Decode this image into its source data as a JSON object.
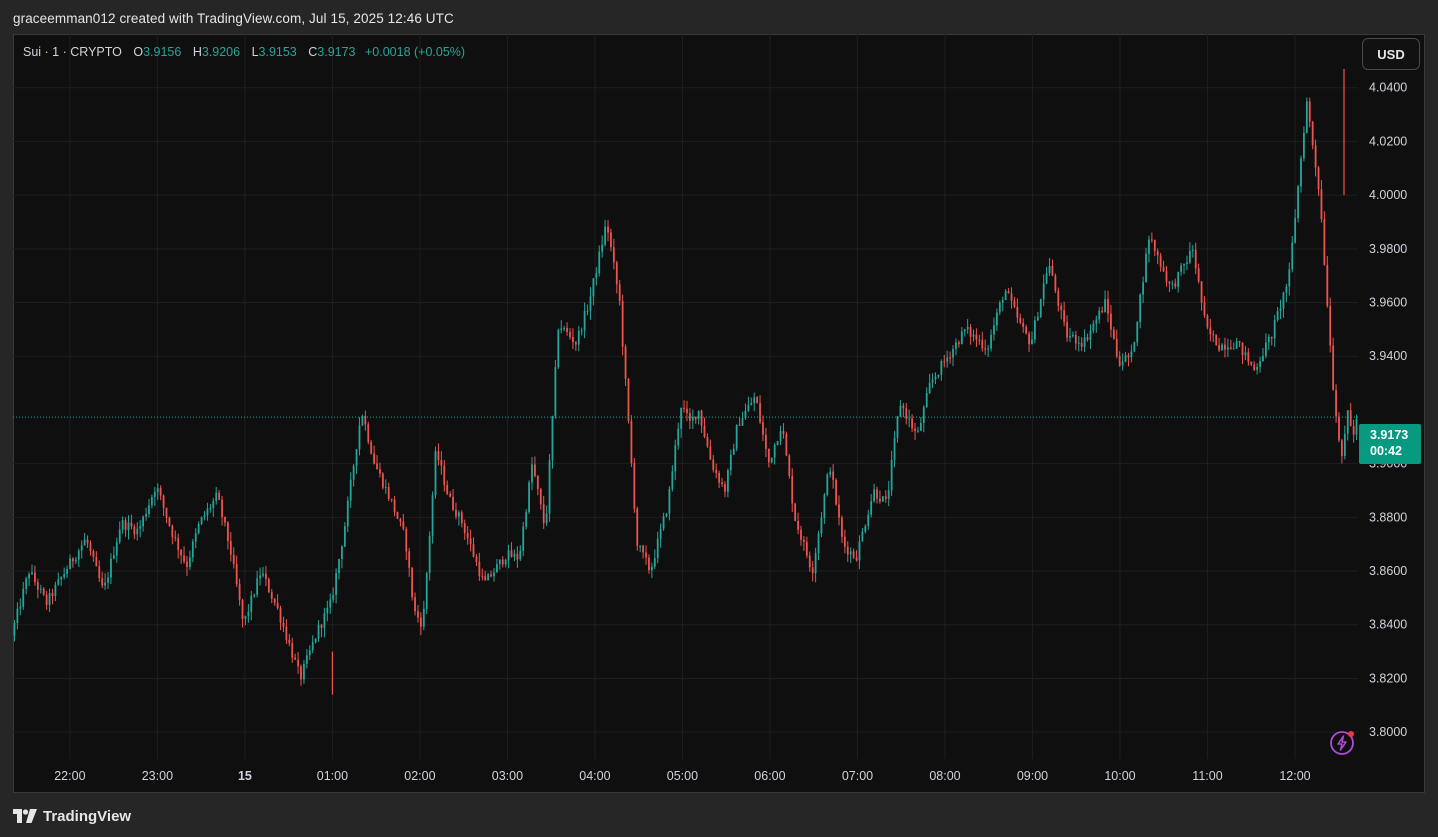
{
  "header": {
    "attribution": "graceemman012 created with TradingView.com, Jul 15, 2025 12:46 UTC"
  },
  "legend": {
    "symbol": "Sui · 1 · CRYPTO",
    "open_label": "O",
    "open_value": "3.9156",
    "high_label": "H",
    "high_value": "3.9206",
    "low_label": "L",
    "low_value": "3.9153",
    "close_label": "C",
    "close_value": "3.9173",
    "change": "+0.0018 (+0.05%)"
  },
  "currency_button": {
    "label": "USD"
  },
  "last_price_badge": {
    "price": "3.9173",
    "countdown": "00:42"
  },
  "footer": {
    "brand": "TradingView"
  },
  "colors": {
    "up": "#26a69a",
    "down": "#ef5350",
    "badge": "#089981",
    "background": "#0f0f0f",
    "grid": "#1f1f1f"
  },
  "icons": {
    "footer_logo": "tradingview-logo-icon",
    "bottom_right": "lightning-bolt-icon"
  },
  "chart_data": {
    "type": "candlestick",
    "symbol": "Sui",
    "interval": "1",
    "last_price": 3.9173,
    "y_range": [
      3.79,
      4.06
    ],
    "y_ticks": [
      "4.0400",
      "4.0200",
      "4.0000",
      "3.9800",
      "3.9600",
      "3.9400",
      "3.9000",
      "3.8800",
      "3.8600",
      "3.8400",
      "3.8200",
      "3.8000"
    ],
    "x_ticks": [
      "22:00",
      "23:00",
      "15",
      "01:00",
      "02:00",
      "03:00",
      "04:00",
      "05:00",
      "06:00",
      "07:00",
      "08:00",
      "09:00",
      "10:00",
      "11:00",
      "12:00"
    ],
    "x_tick_hours": [
      22,
      23,
      24,
      25,
      26,
      27,
      28,
      29,
      30,
      31,
      32,
      33,
      34,
      35,
      36
    ],
    "x_range_hours": [
      21.35,
      36.72
    ],
    "grid": true,
    "path_hours": [
      21.35,
      21.55,
      21.75,
      22.0,
      22.2,
      22.4,
      22.6,
      22.8,
      23.0,
      23.2,
      23.35,
      23.5,
      23.7,
      23.85,
      24.0,
      24.2,
      24.4,
      24.65,
      24.85,
      25.0,
      25.15,
      25.35,
      25.5,
      25.7,
      25.85,
      25.95,
      26.05,
      26.2,
      26.35,
      26.5,
      26.75,
      27.0,
      27.15,
      27.3,
      27.45,
      27.6,
      27.8,
      27.95,
      28.15,
      28.3,
      28.5,
      28.65,
      28.85,
      29.0,
      29.1,
      29.2,
      29.35,
      29.5,
      29.65,
      29.85,
      30.0,
      30.15,
      30.3,
      30.5,
      30.7,
      30.85,
      31.0,
      31.2,
      31.35,
      31.5,
      31.7,
      31.85,
      32.05,
      32.25,
      32.5,
      32.7,
      32.9,
      33.0,
      33.2,
      33.4,
      33.6,
      33.85,
      34.0,
      34.15,
      34.35,
      34.6,
      34.85,
      35.0,
      35.15,
      35.35,
      35.55,
      35.75,
      35.95,
      36.15,
      36.3,
      36.45,
      36.55,
      36.62,
      36.7,
      36.72
    ],
    "path_prices": [
      3.836,
      3.86,
      3.848,
      3.862,
      3.872,
      3.852,
      3.878,
      3.875,
      3.892,
      3.873,
      3.862,
      3.878,
      3.888,
      3.868,
      3.84,
      3.86,
      3.845,
      3.82,
      3.838,
      3.848,
      3.875,
      3.92,
      3.9,
      3.885,
      3.872,
      3.845,
      3.84,
      3.905,
      3.887,
      3.878,
      3.855,
      3.866,
      3.865,
      3.9,
      3.875,
      3.952,
      3.945,
      3.96,
      3.99,
      3.96,
      3.87,
      3.86,
      3.885,
      3.922,
      3.915,
      3.92,
      3.9,
      3.89,
      3.915,
      3.925,
      3.9,
      3.915,
      3.88,
      3.86,
      3.9,
      3.87,
      3.865,
      3.89,
      3.885,
      3.923,
      3.91,
      3.93,
      3.94,
      3.95,
      3.943,
      3.965,
      3.95,
      3.945,
      3.975,
      3.948,
      3.945,
      3.96,
      3.938,
      3.94,
      3.985,
      3.965,
      3.98,
      3.95,
      3.944,
      3.945,
      3.935,
      3.948,
      3.97,
      4.035,
      4.0,
      3.93,
      3.9,
      3.92,
      3.908,
      3.917
    ],
    "high": 4.047,
    "low": 3.814
  }
}
